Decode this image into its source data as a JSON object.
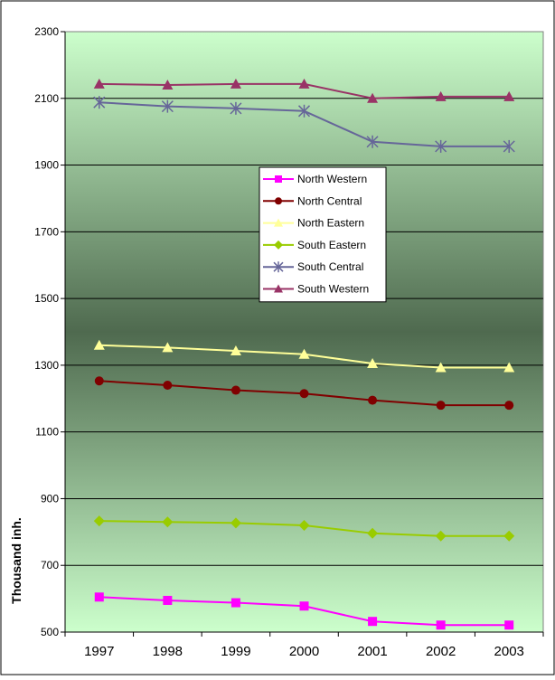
{
  "chart_data": {
    "type": "line",
    "title": "",
    "xlabel": "",
    "ylabel": "Thousand inh.",
    "ylim": [
      500,
      2300
    ],
    "yticks": [
      500,
      700,
      900,
      1100,
      1300,
      1500,
      1700,
      1900,
      2100,
      2300
    ],
    "categories": [
      "1997",
      "1998",
      "1999",
      "2000",
      "2001",
      "2002",
      "2003"
    ],
    "grid": "horizontal",
    "legend_position": "center",
    "series": [
      {
        "name": "North Western",
        "color": "#FF00FF",
        "marker": "square",
        "values": [
          605,
          595,
          588,
          578,
          532,
          521,
          521
        ]
      },
      {
        "name": "North Central",
        "color": "#800000",
        "marker": "circle",
        "values": [
          1253,
          1240,
          1225,
          1215,
          1195,
          1180,
          1180
        ]
      },
      {
        "name": "North Eastern",
        "color": "#FFFF99",
        "marker": "triangle",
        "values": [
          1360,
          1353,
          1343,
          1333,
          1305,
          1293,
          1293
        ]
      },
      {
        "name": "South Eastern",
        "color": "#99CC00",
        "marker": "diamond",
        "values": [
          833,
          830,
          827,
          820,
          796,
          788,
          788
        ]
      },
      {
        "name": "South Central",
        "color": "#666699",
        "marker": "asterisk",
        "values": [
          2088,
          2076,
          2070,
          2062,
          1970,
          1956,
          1956
        ]
      },
      {
        "name": "South Western",
        "color": "#993366",
        "marker": "triangle",
        "values": [
          2143,
          2140,
          2143,
          2143,
          2100,
          2105,
          2105
        ]
      }
    ]
  }
}
